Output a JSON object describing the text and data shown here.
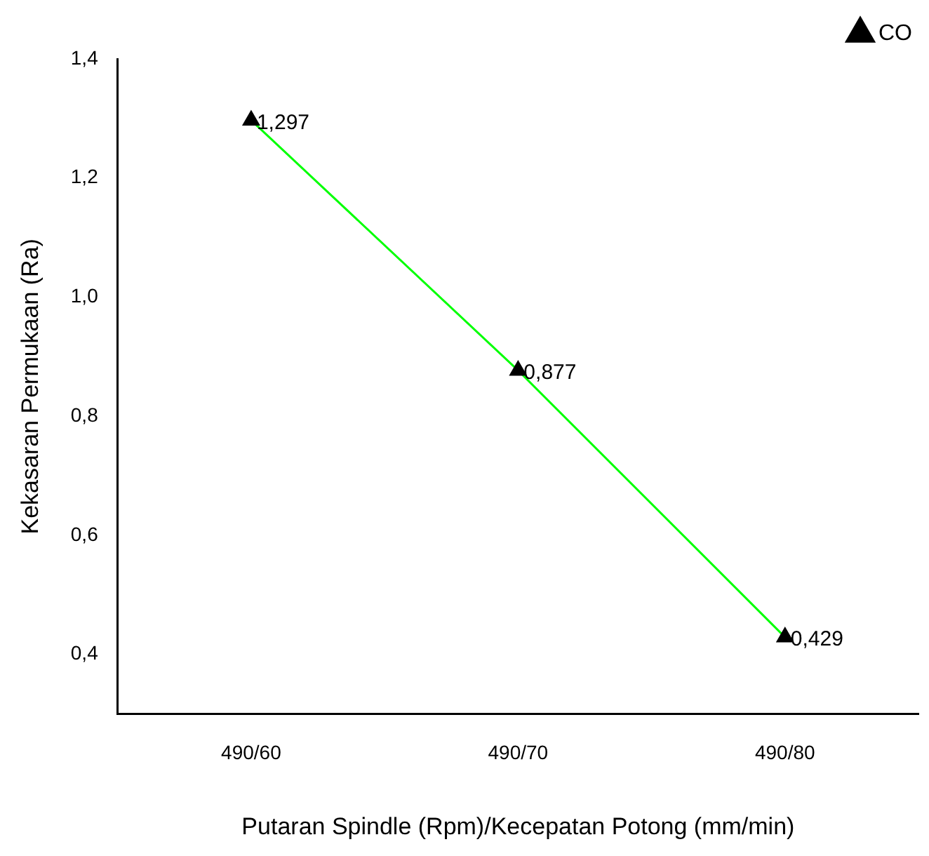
{
  "chart_data": {
    "type": "line",
    "xlabel": "Putaran Spindle (Rpm)/Kecepatan Potong (mm/min)",
    "ylabel": "Kekasaran Permukaan (Ra)",
    "categories": [
      "490/60",
      "490/70",
      "490/80"
    ],
    "series": [
      {
        "name": "CO",
        "color": "#00ff00",
        "values": [
          1.297,
          0.877,
          0.429
        ],
        "value_labels": [
          "1,297",
          "0,877",
          "0,429"
        ]
      }
    ],
    "ylim": [
      0.3,
      1.4
    ],
    "yticks": [
      {
        "value": 0.4,
        "label": "0,4"
      },
      {
        "value": 0.6,
        "label": "0,6"
      },
      {
        "value": 0.8,
        "label": "0,8"
      },
      {
        "value": 1.0,
        "label": "1,0"
      },
      {
        "value": 1.2,
        "label": "1,2"
      },
      {
        "value": 1.4,
        "label": "1,4"
      }
    ],
    "grid": false,
    "legend": "top right",
    "marker": "triangle",
    "line_style": "solid"
  }
}
